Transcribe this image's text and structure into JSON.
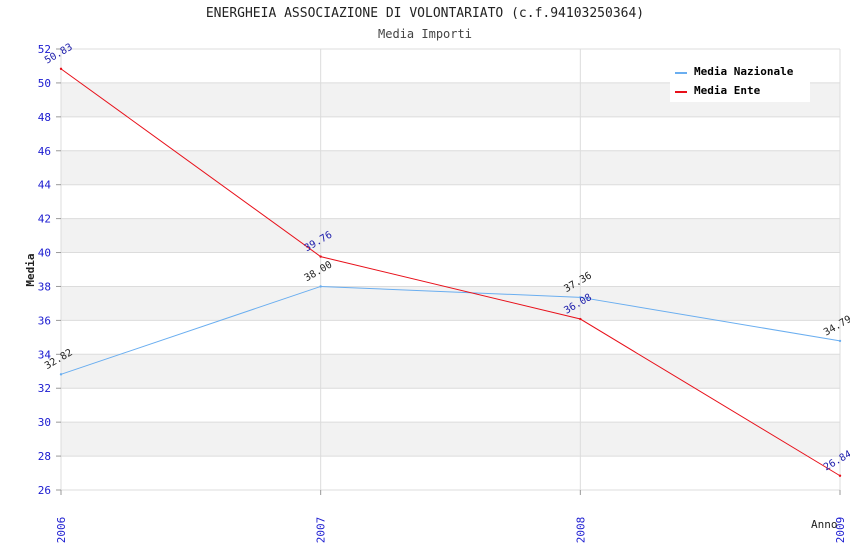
{
  "chart_data": {
    "type": "line",
    "title": "ENERGHEIA ASSOCIAZIONE DI VOLONTARIATO (c.f.94103250364)",
    "subtitle": "Media Importi",
    "xlabel": "Anno",
    "ylabel": "Media",
    "categories": [
      "2006",
      "2007",
      "2008",
      "2009"
    ],
    "ylim": [
      26,
      52
    ],
    "yticks": [
      26,
      28,
      30,
      32,
      34,
      36,
      38,
      40,
      42,
      44,
      46,
      48,
      50,
      52
    ],
    "grid": true,
    "legend_position": "top-right",
    "series": [
      {
        "name": "Media Nazionale",
        "color": "#6aaef0",
        "label_color": "#222222",
        "values": [
          32.82,
          38.0,
          37.36,
          34.79
        ],
        "labels": [
          "32.82",
          "38.00",
          "37.36",
          "34.79"
        ]
      },
      {
        "name": "Media Ente",
        "color": "#e8101a",
        "label_color": "#1a1aaa",
        "values": [
          50.83,
          39.76,
          36.08,
          26.84
        ],
        "labels": [
          "50.83",
          "39.76",
          "36.08",
          "26.84"
        ]
      }
    ]
  },
  "colors": {
    "axis_tick_text": "#1a1ad0",
    "band": "#f2f2f2",
    "grid": "#dcdcdc"
  }
}
